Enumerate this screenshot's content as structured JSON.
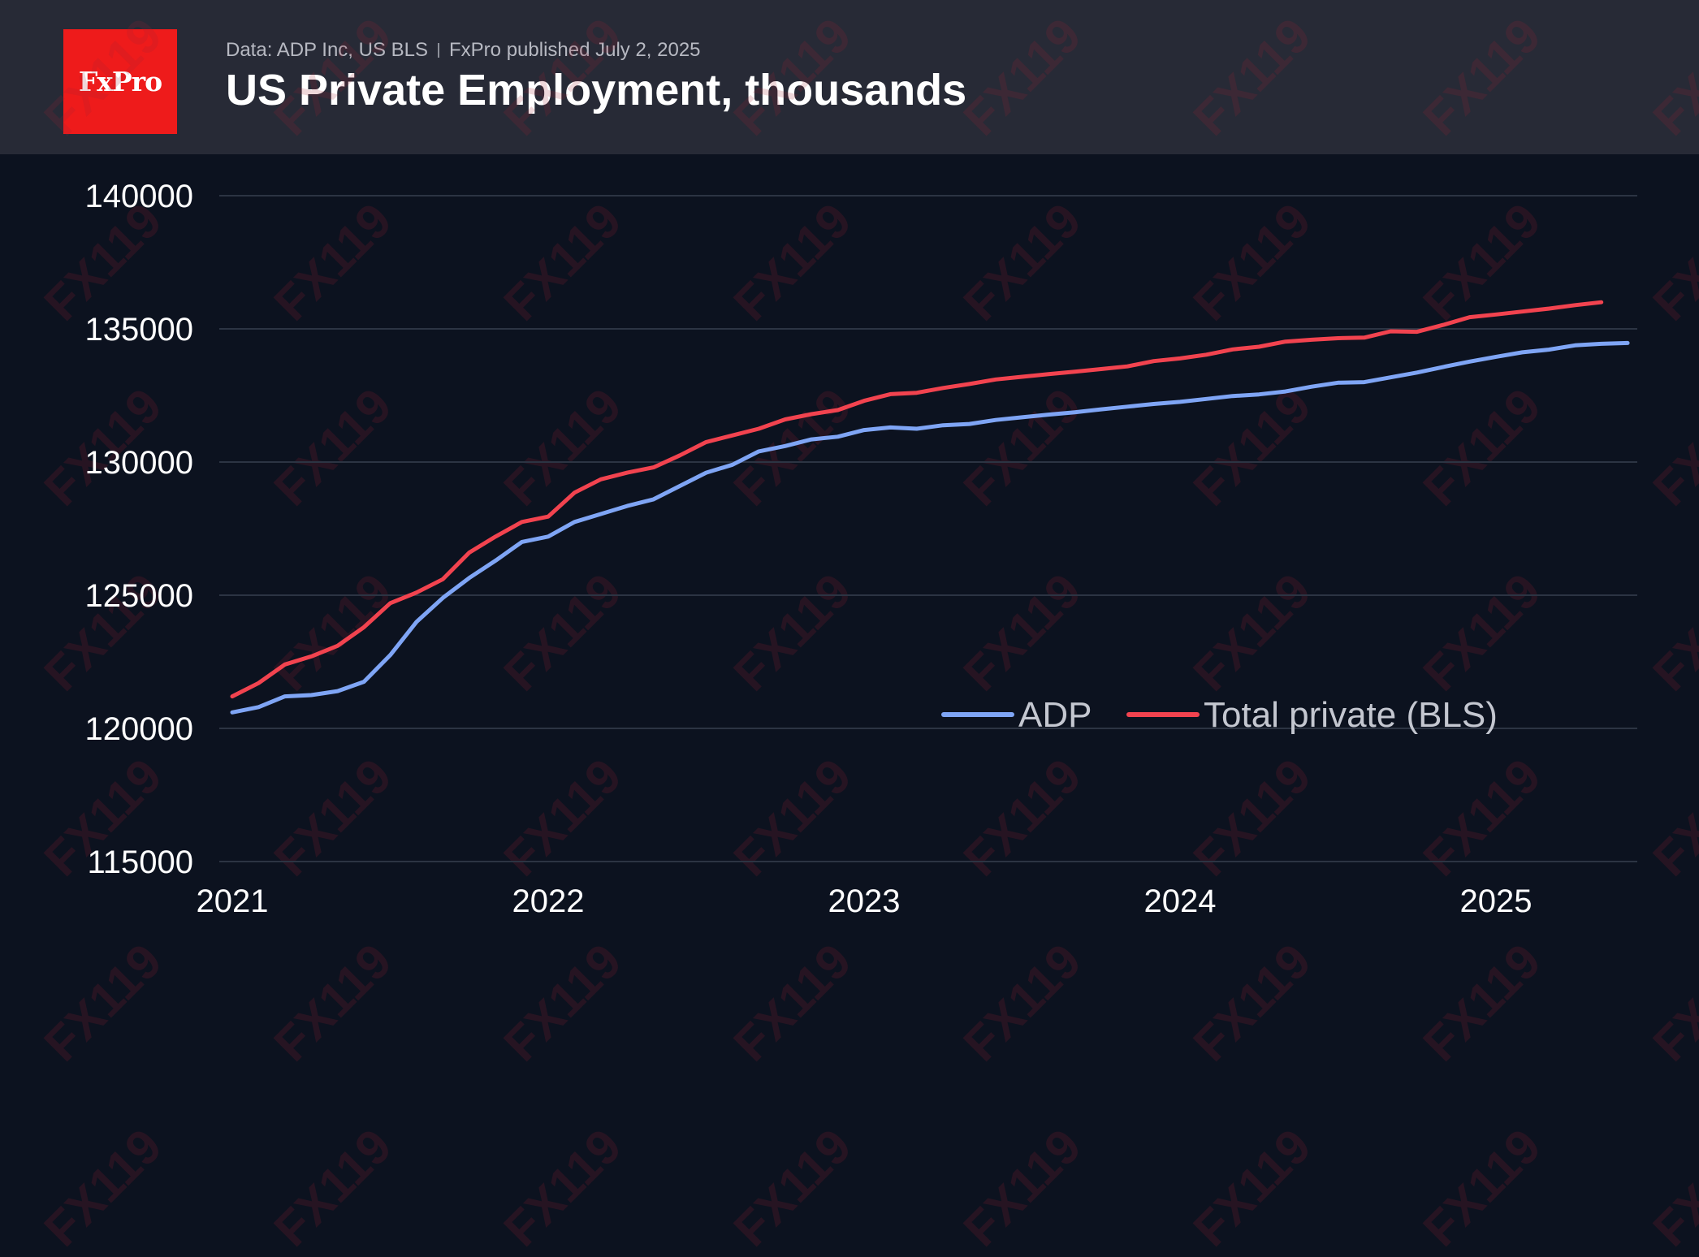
{
  "header": {
    "logo_text": "FxPro",
    "source_left": "Data: ADP Inc, US BLS",
    "source_right": "FxPro published July 2, 2025",
    "title": "US Private Employment, thousands"
  },
  "watermark_text": "FX119",
  "colors": {
    "background": "#0c121f",
    "header": "#272a36",
    "logo": "#ee1b1b",
    "adp": "#7fa5f5",
    "bls": "#f2434f",
    "grid": "#2c3443"
  },
  "chart_data": {
    "type": "line",
    "title": "US Private Employment, thousands",
    "xlabel": "",
    "ylabel": "",
    "x_ticks": [
      "2021",
      "2022",
      "2023",
      "2024",
      "2025"
    ],
    "y_ticks": [
      140000,
      135000,
      130000,
      125000,
      120000,
      115000
    ],
    "ylim": [
      115000,
      140000
    ],
    "grid": true,
    "legend_position": "bottom-right",
    "x_dates": [
      "2021-01",
      "2021-02",
      "2021-03",
      "2021-04",
      "2021-05",
      "2021-06",
      "2021-07",
      "2021-08",
      "2021-09",
      "2021-10",
      "2021-11",
      "2021-12",
      "2022-01",
      "2022-02",
      "2022-03",
      "2022-04",
      "2022-05",
      "2022-06",
      "2022-07",
      "2022-08",
      "2022-09",
      "2022-10",
      "2022-11",
      "2022-12",
      "2023-01",
      "2023-02",
      "2023-03",
      "2023-04",
      "2023-05",
      "2023-06",
      "2023-07",
      "2023-08",
      "2023-09",
      "2023-10",
      "2023-11",
      "2023-12",
      "2024-01",
      "2024-02",
      "2024-03",
      "2024-04",
      "2024-05",
      "2024-06",
      "2024-07",
      "2024-08",
      "2024-09",
      "2024-10",
      "2024-11",
      "2024-12",
      "2025-01",
      "2025-02",
      "2025-03",
      "2025-04",
      "2025-05",
      "2025-06"
    ],
    "series": [
      {
        "name": "ADP",
        "values": [
          120600,
          120800,
          121200,
          121250,
          121400,
          121750,
          122750,
          124000,
          124900,
          125650,
          126300,
          127000,
          127200,
          127750,
          128050,
          128350,
          128600,
          129100,
          129600,
          129900,
          130400,
          130600,
          130850,
          130950,
          131200,
          131300,
          131250,
          131380,
          131430,
          131580,
          131680,
          131780,
          131870,
          131980,
          132080,
          132180,
          132260,
          132370,
          132480,
          132540,
          132650,
          132830,
          132980,
          133000,
          133180,
          133360,
          133570,
          133770,
          133950,
          134120,
          134220,
          134380,
          134440,
          134470
        ]
      },
      {
        "name": "Total private (BLS)",
        "values": [
          121200,
          121700,
          122400,
          122700,
          123100,
          123800,
          124700,
          125100,
          125600,
          126600,
          127200,
          127750,
          127950,
          128850,
          129350,
          129600,
          129800,
          130250,
          130750,
          131000,
          131250,
          131600,
          131800,
          131950,
          132300,
          132550,
          132600,
          132780,
          132930,
          133100,
          133200,
          133300,
          133390,
          133490,
          133590,
          133790,
          133890,
          134030,
          134230,
          134330,
          134520,
          134590,
          134650,
          134670,
          134910,
          134890,
          135150,
          135440,
          135540,
          135650,
          135760,
          135890,
          136000
        ]
      }
    ]
  }
}
